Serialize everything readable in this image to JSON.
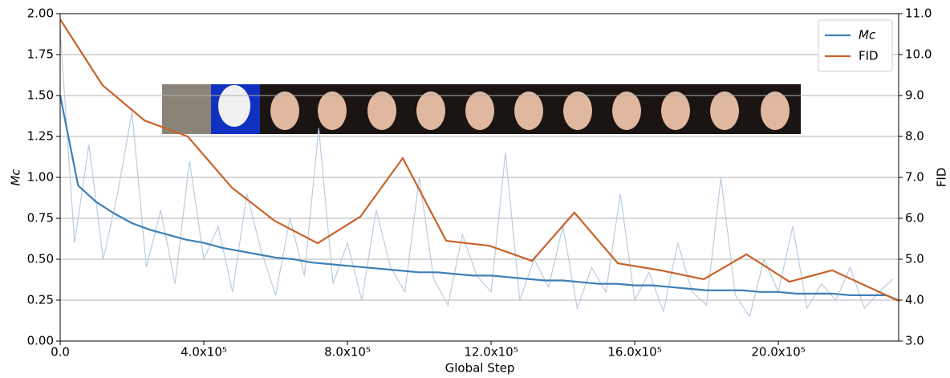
{
  "chart_data": {
    "type": "line",
    "xlabel": "Global Step",
    "ylabel": "Mc",
    "y2label": "FID",
    "xlim": [
      0,
      2335000
    ],
    "ylim": [
      0,
      2
    ],
    "y2lim": [
      3,
      11
    ],
    "xticks": [
      {
        "value": 0,
        "label": "0.0"
      },
      {
        "value": 400000,
        "label": "4.0x10⁵"
      },
      {
        "value": 800000,
        "label": "8.0x10⁵"
      },
      {
        "value": 1200000,
        "label": "12.0x10⁵"
      },
      {
        "value": 1600000,
        "label": "16.0x10⁵"
      },
      {
        "value": 2000000,
        "label": "20.0x10⁵"
      }
    ],
    "yticks": [
      {
        "value": 0,
        "label": "0.00"
      },
      {
        "value": 0.25,
        "label": "0.25"
      },
      {
        "value": 0.5,
        "label": "0.50"
      },
      {
        "value": 0.75,
        "label": "0.75"
      },
      {
        "value": 1,
        "label": "1.00"
      },
      {
        "value": 1.25,
        "label": "1.25"
      },
      {
        "value": 1.5,
        "label": "1.50"
      },
      {
        "value": 1.75,
        "label": "1.75"
      },
      {
        "value": 2,
        "label": "2.00"
      }
    ],
    "y2ticks": [
      {
        "value": 3,
        "label": "3.0"
      },
      {
        "value": 4,
        "label": "4.0"
      },
      {
        "value": 5,
        "label": "5.0"
      },
      {
        "value": 6,
        "label": "6.0"
      },
      {
        "value": 7,
        "label": "7.0"
      },
      {
        "value": 8,
        "label": "8.0"
      },
      {
        "value": 9,
        "label": "9.0"
      },
      {
        "value": 10,
        "label": "10.0"
      },
      {
        "value": 11,
        "label": "11.0"
      }
    ],
    "grid": "y",
    "legend": "upper right",
    "series": [
      {
        "color": "#b9cde2",
        "x": [
          0,
          40000,
          80000,
          120000,
          160000,
          200000,
          240000,
          280000,
          320000,
          360000,
          400000,
          440000,
          480000,
          520000,
          560000,
          600000,
          640000,
          680000,
          720000,
          760000,
          800000,
          840000,
          880000,
          920000,
          960000,
          1000000,
          1040000,
          1080000,
          1120000,
          1160000,
          1200000,
          1240000,
          1280000,
          1320000,
          1360000,
          1400000,
          1440000,
          1480000,
          1520000,
          1560000,
          1600000,
          1640000,
          1680000,
          1720000,
          1760000,
          1800000,
          1840000,
          1880000,
          1920000,
          1960000,
          2000000,
          2040000,
          2080000,
          2120000,
          2160000,
          2200000,
          2240000,
          2280000,
          2320000
        ],
        "values": [
          1.9,
          0.6,
          1.2,
          0.5,
          0.9,
          1.4,
          0.45,
          0.8,
          0.35,
          1.1,
          0.5,
          0.7,
          0.3,
          0.9,
          0.55,
          0.28,
          0.75,
          0.4,
          1.3,
          0.35,
          0.6,
          0.25,
          0.8,
          0.45,
          0.3,
          1.0,
          0.38,
          0.22,
          0.65,
          0.4,
          0.3,
          1.15,
          0.25,
          0.5,
          0.33,
          0.7,
          0.2,
          0.45,
          0.3,
          0.9,
          0.25,
          0.42,
          0.18,
          0.6,
          0.3,
          0.22,
          1.0,
          0.28,
          0.15,
          0.5,
          0.3,
          0.7,
          0.2,
          0.35,
          0.25,
          0.45,
          0.2,
          0.3,
          0.38
        ]
      },
      {
        "name": "Mc",
        "color": "#3f7fb5",
        "x": [
          0,
          50000,
          100000,
          150000,
          200000,
          250000,
          300000,
          350000,
          400000,
          450000,
          500000,
          550000,
          600000,
          650000,
          700000,
          750000,
          800000,
          850000,
          900000,
          950000,
          1000000,
          1050000,
          1100000,
          1150000,
          1200000,
          1250000,
          1300000,
          1350000,
          1400000,
          1450000,
          1500000,
          1550000,
          1600000,
          1650000,
          1700000,
          1750000,
          1800000,
          1850000,
          1900000,
          1950000,
          2000000,
          2050000,
          2100000,
          2150000,
          2200000,
          2250000,
          2300000,
          2335000
        ],
        "values": [
          1.5,
          0.95,
          0.85,
          0.78,
          0.72,
          0.68,
          0.65,
          0.62,
          0.6,
          0.57,
          0.55,
          0.53,
          0.51,
          0.5,
          0.48,
          0.47,
          0.46,
          0.45,
          0.44,
          0.43,
          0.42,
          0.42,
          0.41,
          0.4,
          0.4,
          0.39,
          0.38,
          0.37,
          0.37,
          0.36,
          0.35,
          0.35,
          0.34,
          0.34,
          0.33,
          0.32,
          0.31,
          0.31,
          0.31,
          0.3,
          0.3,
          0.29,
          0.29,
          0.29,
          0.28,
          0.28,
          0.28,
          0.25
        ]
      },
      {
        "name": "FID",
        "color": "#c8622a",
        "axis": "y2",
        "x": [
          0,
          118000,
          235000,
          355000,
          478000,
          597000,
          717000,
          836000,
          954000,
          1075000,
          1195000,
          1314000,
          1432000,
          1553000,
          1672000,
          1792000,
          1911000,
          2031000,
          2150000,
          2335000
        ],
        "values": [
          10.86,
          9.25,
          8.39,
          8.0,
          6.75,
          5.94,
          5.39,
          6.04,
          7.47,
          5.45,
          5.33,
          4.96,
          6.14,
          4.9,
          4.73,
          4.51,
          5.12,
          4.45,
          4.73,
          3.98
        ]
      }
    ]
  }
}
